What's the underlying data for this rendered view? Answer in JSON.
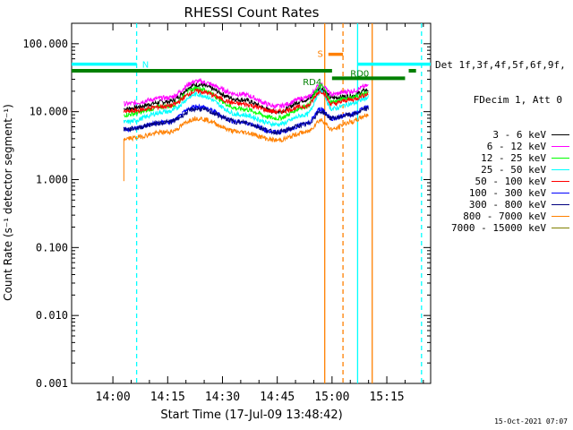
{
  "chart_data": {
    "type": "line",
    "title": "RHESSI Count Rates",
    "xlabel": "Start Time (17-Jul-09 13:48:42)",
    "ylabel": "Count Rate (s⁻¹ detector segment⁻¹)",
    "y_scale": "log",
    "ylim": [
      0.001,
      200
    ],
    "xlim": [
      "13:48:42",
      "15:27:00"
    ],
    "y_ticks": [
      "0.001",
      "0.010",
      "0.100",
      "1.000",
      "10.000",
      "100.000"
    ],
    "x_ticks": [
      "14:00",
      "14:15",
      "14:30",
      "14:45",
      "15:00",
      "15:15"
    ],
    "legend_header": [
      "Det 1f,3f,4f,5f,6f,9f,",
      "FDecim 1, Att 0"
    ],
    "series": [
      {
        "name": "3 - 6 keV",
        "color": "#000000",
        "x": [
          "14:03",
          "14:15",
          "14:23",
          "14:35",
          "14:45",
          "14:53",
          "14:57",
          "15:00",
          "15:05",
          "15:10"
        ],
        "values": [
          11,
          14,
          25,
          15,
          10,
          15,
          22,
          16,
          17,
          21
        ]
      },
      {
        "name": "6 - 12 keV",
        "color": "#ff00ff",
        "x": [
          "14:03",
          "14:15",
          "14:23",
          "14:35",
          "14:45",
          "14:53",
          "14:57",
          "15:00",
          "15:05",
          "15:10"
        ],
        "values": [
          13,
          16,
          28,
          18,
          12,
          16,
          25,
          18,
          20,
          24
        ]
      },
      {
        "name": "12 - 25 keV",
        "color": "#00ff00",
        "x": [
          "14:03",
          "14:15",
          "14:23",
          "14:35",
          "14:45",
          "14:53",
          "14:57",
          "15:00",
          "15:05",
          "15:10"
        ],
        "values": [
          9,
          12,
          22,
          11,
          8,
          12,
          24,
          14,
          16,
          19
        ]
      },
      {
        "name": "25 - 50 keV",
        "color": "#00ffff",
        "x": [
          "14:03",
          "14:15",
          "14:23",
          "14:35",
          "14:45",
          "14:53",
          "14:57",
          "15:00",
          "15:05",
          "15:10"
        ],
        "values": [
          7,
          10,
          18,
          9,
          6.5,
          9,
          20,
          11,
          13,
          16
        ]
      },
      {
        "name": "50 - 100 keV",
        "color": "#ff0000",
        "x": [
          "14:03",
          "14:15",
          "14:23",
          "14:35",
          "14:45",
          "14:53",
          "14:57",
          "15:00",
          "15:05",
          "15:10"
        ],
        "values": [
          10,
          12,
          20,
          13,
          10,
          12,
          20,
          13,
          15,
          18
        ]
      },
      {
        "name": "100 - 300 keV",
        "color": "#0000ff",
        "x": [
          "14:03",
          "14:15",
          "14:23",
          "14:35",
          "14:45",
          "14:53",
          "14:57",
          "15:00",
          "15:05",
          "15:10"
        ],
        "values": [
          5.5,
          7,
          12,
          7,
          5,
          6.5,
          11,
          8,
          9,
          12
        ]
      },
      {
        "name": "300 - 800 keV",
        "color": "#000080",
        "x": [
          "14:03",
          "14:15",
          "14:23",
          "14:35",
          "14:45",
          "14:53",
          "14:57",
          "15:00",
          "15:05",
          "15:10"
        ],
        "values": [
          5.5,
          7,
          11,
          7,
          5,
          6.5,
          10,
          8,
          9,
          11
        ]
      },
      {
        "name": "800 - 7000 keV",
        "color": "#ff8000",
        "x": [
          "14:03",
          "14:15",
          "14:23",
          "14:35",
          "14:45",
          "14:53",
          "14:57",
          "15:00",
          "15:05",
          "15:10"
        ],
        "values": [
          4,
          5,
          8,
          5,
          3.8,
          5,
          7.5,
          5.5,
          7,
          9
        ]
      },
      {
        "name": "7000 - 15000 keV",
        "color": "#808000",
        "x": [],
        "values": []
      }
    ],
    "annotations": [
      {
        "text": "N",
        "color": "#00ffff",
        "bar_from": "13:48:42",
        "bar_to": "14:06:30",
        "bar_y": 50,
        "text_x": "14:08",
        "text_y": 50
      },
      {
        "text": "N",
        "color": "#00ffff",
        "bar_from": "15:07",
        "bar_to": "15:27",
        "bar_y": 50
      },
      {
        "text": "S",
        "color": "#ff8000",
        "bar_from": "14:59",
        "bar_to": "15:03",
        "bar_y": 70,
        "text_x": "14:56",
        "text_y": 72
      },
      {
        "text": "RD4",
        "color": "#008000",
        "text_x": "14:52",
        "text_y": 28
      },
      {
        "text": "RD0",
        "color": "#008000",
        "text_x": "15:05",
        "text_y": 37
      }
    ],
    "green_bars": [
      {
        "from": "13:48:42",
        "to": "15:00",
        "y": 40
      },
      {
        "from": "15:00",
        "to": "15:20",
        "y": 31
      },
      {
        "from": "15:21",
        "to": "15:23",
        "y": 40
      }
    ],
    "vlines": [
      {
        "x": "14:06:30",
        "color": "#00ffff",
        "style": "dashed"
      },
      {
        "x": "15:07",
        "color": "#00ffff",
        "style": "solid"
      },
      {
        "x": "15:24:30",
        "color": "#00ffff",
        "style": "dashed"
      },
      {
        "x": "14:58",
        "color": "#ff8000",
        "style": "solid"
      },
      {
        "x": "15:03",
        "color": "#ff8000",
        "style": "dashed"
      },
      {
        "x": "15:11",
        "color": "#ff8000",
        "style": "solid"
      }
    ],
    "grid": false,
    "legend_position": "right"
  },
  "footer": {
    "timestamp": "15-Oct-2021 07:07"
  }
}
